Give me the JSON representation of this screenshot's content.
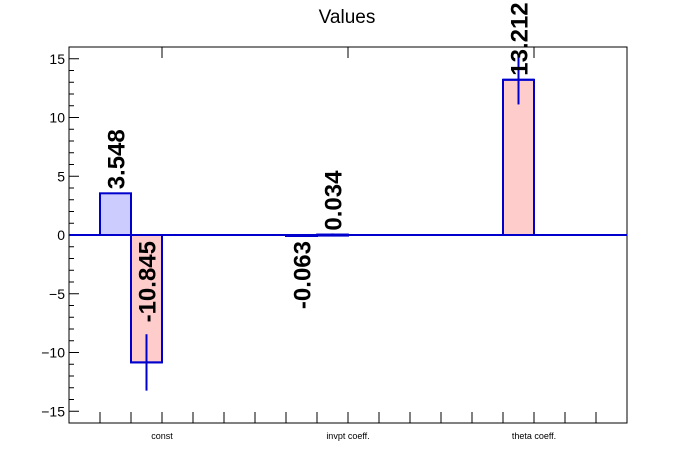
{
  "chart_data": {
    "type": "bar",
    "title": "Values",
    "xlabel": "",
    "ylabel": "",
    "ylim": [
      -16,
      16
    ],
    "yticks": [
      -15,
      -10,
      -5,
      0,
      5,
      10,
      15
    ],
    "ytick_labels": [
      "−15",
      "−10",
      "−5",
      "0",
      "5",
      "10",
      "15"
    ],
    "categories": [
      "const",
      "invpt coeff.",
      "theta coeff."
    ],
    "series": [
      {
        "color": "#ccccff",
        "values": [
          3.548,
          -0.063,
          0
        ],
        "errors": [
          0.0,
          0.0,
          0.0
        ],
        "labels": [
          "3.548",
          "-0.063",
          ""
        ]
      },
      {
        "color": "#ffcccc",
        "values": [
          -10.845,
          0.034,
          13.212
        ],
        "errors": [
          2.4,
          0.1,
          2.1
        ],
        "labels": [
          "-10.845",
          "0.034",
          "13.212"
        ]
      }
    ],
    "grid": false,
    "legend": "none",
    "edge_color": "#0000cc",
    "error_color": "#0000cc"
  }
}
